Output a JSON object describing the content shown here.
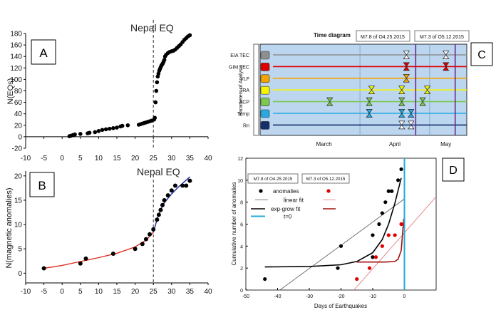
{
  "chart_data": [
    {
      "panel": "A",
      "type": "scatter",
      "title": "Nepal EQ",
      "ylabel": "N(EQs)",
      "xlim": [
        -10,
        40
      ],
      "ylim": [
        -20,
        180
      ],
      "x_ticks": [
        "-10",
        "-5",
        "0",
        "5",
        "10",
        "15",
        "20",
        "25",
        "30",
        "35",
        "40"
      ],
      "y_ticks": [
        "-20",
        "0",
        "20",
        "40",
        "60",
        "80",
        "100",
        "120",
        "140",
        "160",
        "180"
      ],
      "event_line_x": 25,
      "points": [
        [
          2,
          1
        ],
        [
          2.5,
          2
        ],
        [
          3,
          3
        ],
        [
          3.5,
          4
        ],
        [
          5,
          5
        ],
        [
          7,
          6
        ],
        [
          7.5,
          7
        ],
        [
          9,
          8
        ],
        [
          10,
          10
        ],
        [
          11,
          12
        ],
        [
          12,
          13
        ],
        [
          13,
          14
        ],
        [
          14,
          15
        ],
        [
          15,
          16
        ],
        [
          16,
          18
        ],
        [
          16.5,
          19
        ],
        [
          18,
          20
        ],
        [
          21,
          21
        ],
        [
          21.5,
          22
        ],
        [
          22,
          23
        ],
        [
          22.5,
          24
        ],
        [
          23,
          25
        ],
        [
          23.5,
          26
        ],
        [
          24,
          27
        ],
        [
          24.5,
          28
        ],
        [
          25.2,
          30
        ],
        [
          25.4,
          33
        ],
        [
          25.6,
          60
        ],
        [
          25.8,
          80
        ],
        [
          26,
          95
        ],
        [
          26.2,
          105
        ],
        [
          26.4,
          110
        ],
        [
          26.6,
          115
        ],
        [
          26.8,
          118
        ],
        [
          27,
          121
        ],
        [
          27.2,
          124
        ],
        [
          27.4,
          126
        ],
        [
          27.6,
          128
        ],
        [
          27.8,
          131
        ],
        [
          28,
          134
        ],
        [
          28.2,
          140
        ],
        [
          28.5,
          143
        ],
        [
          29,
          146
        ],
        [
          29.5,
          148
        ],
        [
          30,
          149
        ],
        [
          30.5,
          150
        ],
        [
          31,
          152
        ],
        [
          31.5,
          155
        ],
        [
          32,
          158
        ],
        [
          32.5,
          161
        ],
        [
          33,
          165
        ],
        [
          33.5,
          169
        ],
        [
          34,
          172
        ],
        [
          34.5,
          175
        ],
        [
          35,
          177
        ]
      ]
    },
    {
      "panel": "B",
      "type": "scatter",
      "title": "Nepal EQ",
      "ylabel": "N(magnetic anomalies)",
      "xlim": [
        -10,
        40
      ],
      "ylim": [
        -2,
        21
      ],
      "x_ticks": [
        "-10",
        "-5",
        "0",
        "5",
        "10",
        "15",
        "20",
        "25",
        "30",
        "35",
        "40"
      ],
      "y_ticks": [
        "0",
        "5",
        "10",
        "15",
        "20"
      ],
      "event_line_x": 25,
      "points": [
        [
          -5,
          1
        ],
        [
          5,
          2
        ],
        [
          6.5,
          3
        ],
        [
          14,
          4
        ],
        [
          20,
          5
        ],
        [
          22,
          6
        ],
        [
          23,
          7
        ],
        [
          24,
          8
        ],
        [
          25,
          9
        ],
        [
          26,
          11
        ],
        [
          26.5,
          12
        ],
        [
          27,
          13
        ],
        [
          27.5,
          14
        ],
        [
          28,
          15
        ],
        [
          29,
          16
        ],
        [
          30,
          17
        ],
        [
          31,
          18
        ],
        [
          33,
          18
        ],
        [
          34,
          18
        ],
        [
          35,
          19
        ]
      ],
      "fit_red": [
        [
          -5,
          1
        ],
        [
          0,
          1.6
        ],
        [
          5,
          2.4
        ],
        [
          10,
          3.2
        ],
        [
          15,
          4.1
        ],
        [
          20,
          5.4
        ],
        [
          23,
          6.8
        ],
        [
          25,
          8.4
        ]
      ],
      "fit_blue": [
        [
          25,
          8.4
        ],
        [
          26,
          11
        ],
        [
          27,
          13
        ],
        [
          28,
          14.5
        ],
        [
          30,
          16.3
        ],
        [
          32,
          17.8
        ],
        [
          35,
          19.8
        ]
      ]
    },
    {
      "panel": "C",
      "type": "timeline",
      "title": "Time diagram",
      "event_labels": [
        "M7.8 of O4.25.2015",
        "M7.3 of O5.12.2015"
      ],
      "ylabel": "Parameters of Analysis",
      "rows": [
        {
          "name": "EIA TEC",
          "color": "#8f8f8f",
          "markers": [
            {
              "day": 51,
              "color": "#ffffff"
            },
            {
              "day": 68,
              "color": "#ffffff"
            }
          ]
        },
        {
          "name": "GIM TEC",
          "color": "#e00000",
          "markers": [
            {
              "day": 51,
              "color": "#e00000"
            },
            {
              "day": 68,
              "color": "#e00000"
            }
          ]
        },
        {
          "name": "VLF",
          "color": "#f5a300",
          "markers": [
            {
              "day": 51,
              "color": "#f5a300"
            }
          ]
        },
        {
          "name": "TRA",
          "color": "#f5f500",
          "markers": [
            {
              "day": 36,
              "color": "#f5f500"
            },
            {
              "day": 49,
              "color": "#f5f500"
            },
            {
              "day": 60,
              "color": "#f5f500"
            }
          ]
        },
        {
          "name": "ACP",
          "color": "#7ec850",
          "markers": [
            {
              "day": 18,
              "color": "#7ec850"
            },
            {
              "day": 35,
              "color": "#7ec850"
            },
            {
              "day": 49,
              "color": "#7ec850"
            },
            {
              "day": 58,
              "color": "#7ec850"
            }
          ]
        },
        {
          "name": "Temp",
          "color": "#2aa8e0",
          "markers": [
            {
              "day": 35,
              "color": "#2aa8e0"
            },
            {
              "day": 49,
              "color": "#2aa8e0"
            },
            {
              "day": 53,
              "color": "#2aa8e0"
            }
          ]
        },
        {
          "name": "Rn",
          "color": "#13306b",
          "markers": [
            {
              "day": 49,
              "color": "#ffffff"
            },
            {
              "day": 53,
              "color": "#ffffff"
            }
          ]
        }
      ],
      "months": [
        "March",
        "April",
        "May"
      ],
      "month_starts": [
        0,
        31,
        61
      ],
      "day_range": [
        -12,
        77
      ],
      "event_days": [
        55,
        72
      ]
    },
    {
      "panel": "D",
      "type": "scatter",
      "xlabel": "Days of Earthquakes",
      "ylabel": "Cumulative number of anomalies",
      "xlim": [
        -50,
        10
      ],
      "ylim": [
        0,
        12
      ],
      "x_ticks": [
        "-50",
        "-40",
        "-30",
        "-20",
        "-10",
        "0"
      ],
      "y_ticks": [
        "0",
        "2",
        "4",
        "6",
        "8",
        "10",
        "12"
      ],
      "event_labels": [
        "M7.8 of O4.25.2015",
        "M7.3 of O5.12.2015"
      ],
      "legend": [
        "anomalies",
        "linear fit",
        "exp-grow fit",
        "t=0"
      ],
      "series": [
        {
          "name": "anomalies",
          "color": "#000000",
          "points": [
            [
              -44,
              1
            ],
            [
              -21,
              2
            ],
            [
              -20,
              4
            ],
            [
              -10,
              3
            ],
            [
              -10,
              5
            ],
            [
              -8,
              6
            ],
            [
              -7,
              7
            ],
            [
              -6,
              8
            ],
            [
              -5,
              9
            ],
            [
              -4,
              9
            ],
            [
              -2,
              10
            ],
            [
              -1,
              11
            ]
          ]
        },
        {
          "name": "anomalies",
          "color": "#e00000",
          "points": [
            [
              -15,
              1
            ],
            [
              -11,
              2
            ],
            [
              -9,
              3
            ],
            [
              -7,
              4
            ],
            [
              -5,
              5
            ],
            [
              -3,
              5
            ],
            [
              -1,
              6
            ]
          ]
        }
      ],
      "linear_fit_black": [
        [
          -44,
          -1
        ],
        [
          0,
          8.3
        ]
      ],
      "linear_fit_red": [
        [
          -22,
          -2
        ],
        [
          10,
          8.5
        ]
      ],
      "exp_fit_black": [
        [
          -44,
          2.1
        ],
        [
          -30,
          2.15
        ],
        [
          -20,
          2.3
        ],
        [
          -15,
          2.6
        ],
        [
          -10,
          3.4
        ],
        [
          -7,
          4.6
        ],
        [
          -5,
          6
        ],
        [
          -3,
          7.9
        ],
        [
          -1,
          10.2
        ]
      ],
      "exp_fit_red": [
        [
          -15,
          2.55
        ],
        [
          -6,
          2.55
        ],
        [
          -3,
          2.6
        ],
        [
          -2,
          2.8
        ],
        [
          -1,
          3.6
        ],
        [
          -0.5,
          5.5
        ],
        [
          -0.2,
          6.5
        ]
      ],
      "t0_x": 0
    }
  ]
}
